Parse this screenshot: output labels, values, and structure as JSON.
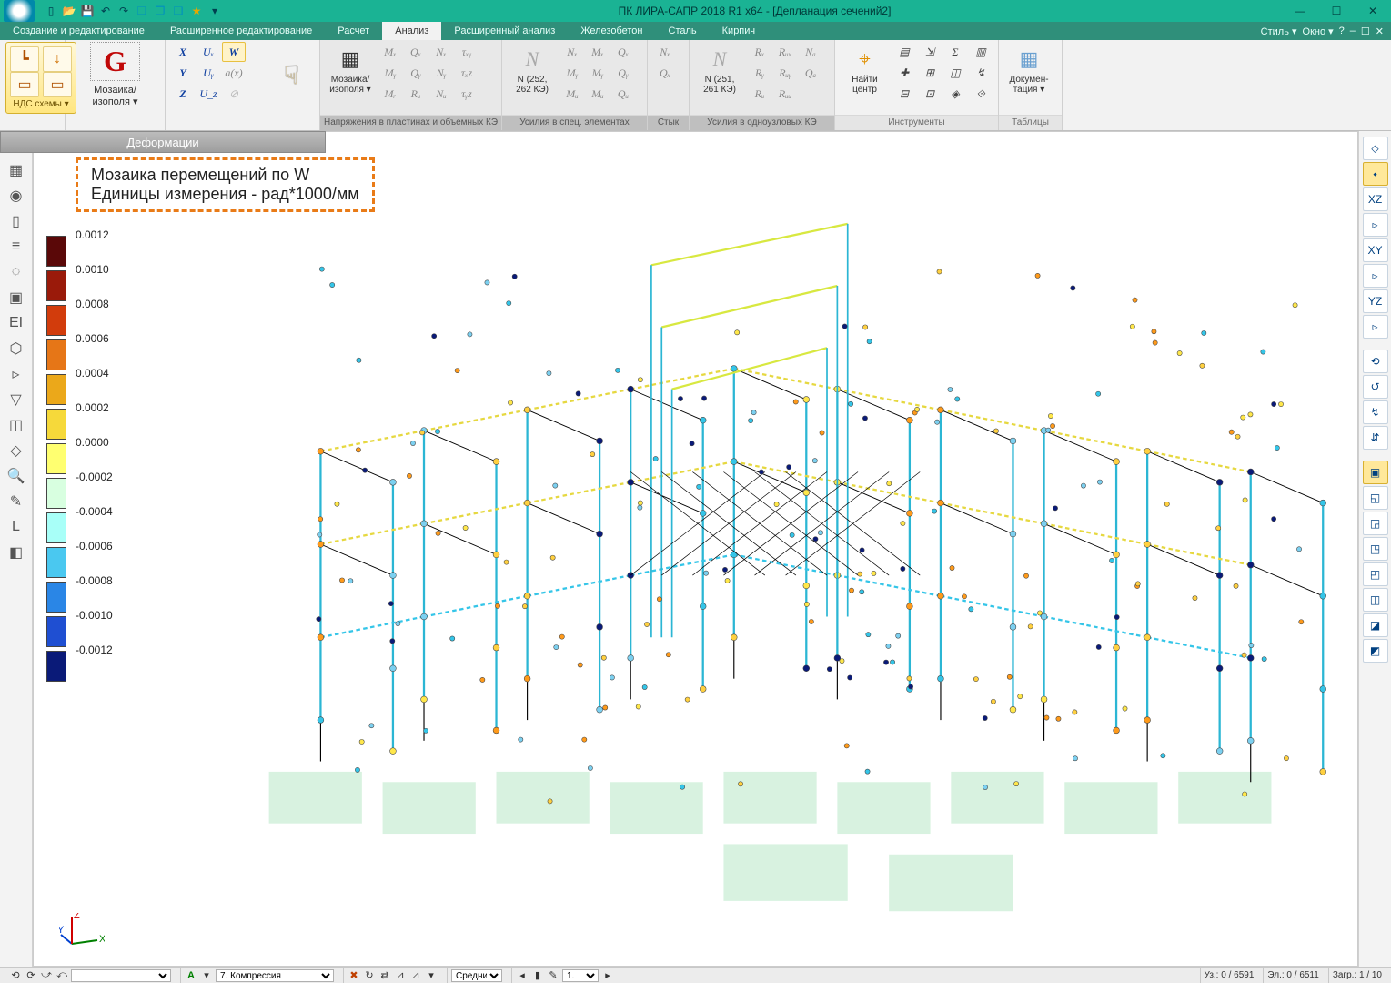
{
  "titlebar": {
    "app_title": "ПК ЛИРА-САПР  2018 R1 x64 - [Депланация сечений2]",
    "qat_icons": [
      "new-icon",
      "open-icon",
      "save-icon",
      "undo-icon",
      "redo-icon",
      "cube-icon",
      "cubes-icon",
      "box-icon",
      "star-icon",
      "flag-icon"
    ]
  },
  "menu": {
    "tabs": [
      "Создание и редактирование",
      "Расширенное редактирование",
      "Расчет",
      "Анализ",
      "Расширенный анализ",
      "Железобетон",
      "Сталь",
      "Кирпич"
    ],
    "active_index": 3,
    "right": {
      "style_label": "Стиль",
      "window_label": "Окно"
    }
  },
  "ribbon": {
    "nds": {
      "label": "НДС схемы ▾"
    },
    "mosaic": {
      "label_line1": "Мозаика/",
      "label_line2": "изополя ▾",
      "group_label": "Деформации"
    },
    "axes": {
      "row1": [
        "X",
        "Uₓ",
        "W"
      ],
      "row2": [
        "Y",
        "Uᵧ",
        "a(x)"
      ],
      "row3": [
        "Z",
        "U_z",
        "⊘"
      ]
    },
    "plate": {
      "big_label_line1": "Мозаика/",
      "big_label_line2": "изополя ▾",
      "cols": [
        [
          "Mₓ",
          "Mᵧ",
          "Mᵣ"
        ],
        [
          "Qₓ",
          "Qᵧ",
          "Rᵤ"
        ],
        [
          "Nₓ",
          "Nᵧ",
          "Nᵤ"
        ],
        [
          "τₓᵧ",
          "τₓz",
          "τᵧz"
        ]
      ],
      "group_label": "Напряжения в пластинах и объемных КЭ"
    },
    "spec": {
      "big": "N",
      "sub_line1": "N (252,",
      "sub_line2": "262 КЭ)",
      "cols": [
        [
          "Nₓ",
          "Mᵧ",
          "Mᵤ"
        ],
        [
          "Mₓ",
          "Mᵧ",
          "Mᵤ"
        ],
        [
          "Qₓ",
          "Qᵧ",
          "Qᵤ"
        ]
      ],
      "group_label": "Усилия в спец. элементах"
    },
    "styk": {
      "group_label": "Стык",
      "cols": [
        [
          "Nₓ",
          "Qₓ"
        ]
      ]
    },
    "onenode": {
      "big": "N",
      "sub_line1": "N (251,",
      "sub_line2": "261 КЭ)",
      "cols": [
        [
          "Rₓ",
          "Rᵧ",
          "Rᵤ"
        ],
        [
          "Rᵤₓ",
          "Rᵤᵧ",
          "Rᵤᵤ"
        ],
        [
          "Nₐ",
          "Qₐ"
        ]
      ],
      "group_label": "Усилия в одноузловых КЭ"
    },
    "instruments": {
      "find_label_line1": "Найти",
      "find_label_line2": "центр",
      "group_label": "Инструменты"
    },
    "tables": {
      "label_line1": "Докумен-",
      "label_line2": "тация ▾",
      "group_label": "Таблицы"
    }
  },
  "callout": {
    "line1": "Мозаика перемещений по W",
    "line2": "Единицы измерения - рад*1000/мм"
  },
  "legend": {
    "values": [
      "0.0012",
      "0.0010",
      "0.0008",
      "0.0006",
      "0.0004",
      "0.0002",
      "0.0000",
      "-0.0002",
      "-0.0004",
      "-0.0006",
      "-0.0008",
      "-0.0010",
      "-0.0012"
    ],
    "colors": [
      "#5a0808",
      "#9a1a0a",
      "#d23c0c",
      "#e67617",
      "#eba81a",
      "#f6d93a",
      "#ffff70",
      "#d8ffe0",
      "#a8fff8",
      "#4ac8f0",
      "#2a86e6",
      "#1f4fd2",
      "#0a1a78"
    ]
  },
  "triad": {
    "x": "X",
    "y": "Y",
    "z": "Z",
    "x_color": "#008000",
    "y_color": "#0040d0",
    "z_color": "#d00000"
  },
  "left_tools": [
    "▦",
    "◉",
    "▯",
    "≡",
    "◌",
    "▣",
    "EI",
    "⬡",
    "▹",
    "▽",
    "◫",
    "◇",
    "🔍",
    "✎",
    "L",
    "◧"
  ],
  "right_tools": {
    "views": [
      {
        "label": "⬦",
        "active": false
      },
      {
        "label": "⬩",
        "active": true
      },
      {
        "label": "XZ",
        "active": false
      },
      {
        "label": "▹",
        "active": false
      },
      {
        "label": "XY",
        "active": false
      },
      {
        "label": "▹",
        "active": false
      },
      {
        "label": "YZ",
        "active": false
      },
      {
        "label": "▹",
        "active": false
      }
    ],
    "mid": [
      "⟲",
      "↺",
      "↯",
      "⇵"
    ],
    "cubes": [
      "▣",
      "◱",
      "◲",
      "◳",
      "◰",
      "◫",
      "◪",
      "◩"
    ]
  },
  "statusbar": {
    "layer_select": "",
    "letter": "A",
    "load_combo": "7. Компрессия",
    "mode": "Средни",
    "step": "1.",
    "nodes_label": "Уз.: 0 / 6591",
    "elems_label": "Эл.: 0 / 6511",
    "load_label": "Загр.: 1 / 10"
  },
  "model": {
    "node_colors": [
      "#34c5e8",
      "#ffe74a",
      "#ff9a1a",
      "#7cd0f0",
      "#ffd040",
      "#0a1a78"
    ],
    "bg": "#ffffff",
    "shadow_color": "#d8f2e0"
  }
}
